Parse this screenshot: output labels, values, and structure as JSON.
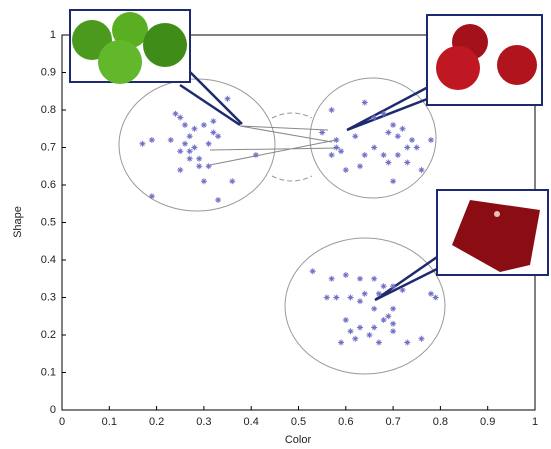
{
  "chart_data": {
    "type": "scatter",
    "xlabel": "Color",
    "ylabel": "Shape",
    "xlim": [
      0,
      1
    ],
    "ylim": [
      0,
      1
    ],
    "xticks": [
      0,
      0.1,
      0.2,
      0.3,
      0.4,
      0.5,
      0.6,
      0.7,
      0.8,
      0.9,
      1
    ],
    "yticks": [
      0,
      0.1,
      0.2,
      0.3,
      0.4,
      0.5,
      0.6,
      0.7,
      0.8,
      0.9,
      1
    ],
    "series": [
      {
        "color": "#7070c8",
        "x": [
          0.24,
          0.25,
          0.26,
          0.27,
          0.28,
          0.3,
          0.32,
          0.35,
          0.33,
          0.31,
          0.26,
          0.25,
          0.27,
          0.28,
          0.27,
          0.29,
          0.31,
          0.3,
          0.25,
          0.29,
          0.33,
          0.36,
          0.17,
          0.19,
          0.19,
          0.41,
          0.23,
          0.32
        ],
        "values": [
          0.79,
          0.78,
          0.76,
          0.73,
          0.75,
          0.76,
          0.77,
          0.83,
          0.73,
          0.71,
          0.71,
          0.69,
          0.69,
          0.7,
          0.67,
          0.67,
          0.65,
          0.61,
          0.64,
          0.65,
          0.56,
          0.61,
          0.71,
          0.72,
          0.57,
          0.68,
          0.72,
          0.74
        ]
      },
      {
        "color": "#7070c8",
        "x": [
          0.57,
          0.64,
          0.66,
          0.68,
          0.7,
          0.69,
          0.71,
          0.72,
          0.74,
          0.73,
          0.75,
          0.78,
          0.71,
          0.73,
          0.69,
          0.68,
          0.66,
          0.64,
          0.63,
          0.62,
          0.58,
          0.59,
          0.57,
          0.6,
          0.7,
          0.76,
          0.55,
          0.58
        ],
        "values": [
          0.8,
          0.82,
          0.78,
          0.79,
          0.76,
          0.74,
          0.73,
          0.75,
          0.72,
          0.7,
          0.7,
          0.72,
          0.68,
          0.66,
          0.66,
          0.68,
          0.7,
          0.68,
          0.65,
          0.73,
          0.7,
          0.69,
          0.68,
          0.64,
          0.61,
          0.64,
          0.74,
          0.72
        ]
      },
      {
        "color": "#7070c8",
        "x": [
          0.53,
          0.57,
          0.6,
          0.63,
          0.66,
          0.68,
          0.56,
          0.58,
          0.61,
          0.63,
          0.64,
          0.67,
          0.7,
          0.72,
          0.7,
          0.69,
          0.7,
          0.66,
          0.68,
          0.63,
          0.6,
          0.66,
          0.65,
          0.7,
          0.67,
          0.62,
          0.59,
          0.73,
          0.76,
          0.78,
          0.79,
          0.61
        ],
        "values": [
          0.37,
          0.35,
          0.36,
          0.35,
          0.35,
          0.33,
          0.3,
          0.3,
          0.3,
          0.29,
          0.31,
          0.31,
          0.33,
          0.32,
          0.27,
          0.25,
          0.23,
          0.27,
          0.24,
          0.22,
          0.24,
          0.22,
          0.2,
          0.21,
          0.18,
          0.19,
          0.18,
          0.18,
          0.19,
          0.31,
          0.3,
          0.21
        ]
      }
    ]
  }
}
